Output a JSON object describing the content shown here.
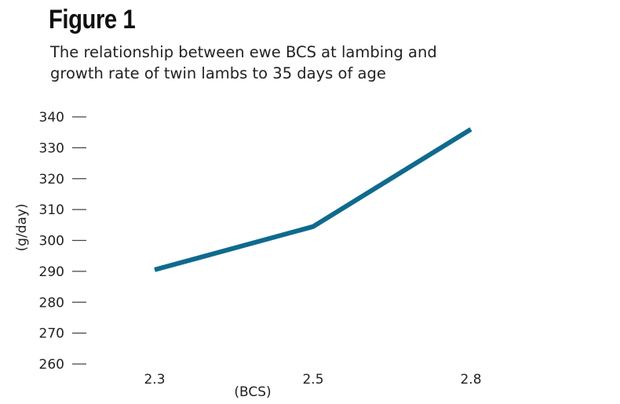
{
  "figure_label": "Figure 1",
  "chart_data": {
    "type": "line",
    "title": "The relationship between ewe BCS at lambing and growth rate of twin lambs to 35 days of age",
    "title_lines": [
      "The relationship between ewe BCS at lambing and",
      "growth rate of twin lambs to 35 days of age"
    ],
    "xlabel": "(BCS)",
    "ylabel": "(g/day)",
    "categories": [
      "2.3",
      "2.5",
      "2.8"
    ],
    "series": [
      {
        "values": [
          290.5,
          304.5,
          336
        ]
      }
    ],
    "ylim": [
      260,
      340
    ],
    "yticks": [
      260,
      270,
      280,
      290,
      300,
      310,
      320,
      330,
      340
    ],
    "grid": false,
    "line_color": "#0f6a8e"
  }
}
